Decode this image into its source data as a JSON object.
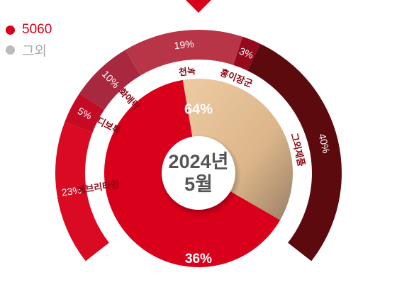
{
  "legend": {
    "items": [
      {
        "label": "5060",
        "color": "#d9001b"
      },
      {
        "label": "그외",
        "color": "#bbbbbb"
      }
    ]
  },
  "chart_data": [
    {
      "type": "pie",
      "title": "",
      "center_label": [
        "2024년",
        "5월"
      ],
      "slices": [
        {
          "label": "5060",
          "value": 64,
          "display": "64%",
          "color": "#d9001b"
        },
        {
          "label": "그외",
          "value": 36,
          "display": "36%",
          "color": "#e9c49a"
        }
      ]
    },
    {
      "type": "bar",
      "layout": "semicircular stacked ring",
      "categories": [
        "에브리타임",
        "디보톡",
        "화애락",
        "천녹",
        "홍이장군",
        "그외제품"
      ],
      "values": [
        23,
        5,
        10,
        19,
        3,
        40
      ],
      "value_labels": [
        "23%",
        "5%",
        "10%",
        "19%",
        "3%",
        "40%"
      ],
      "colors": [
        "#d90a22",
        "#c40b23",
        "#a8283f",
        "#b83547",
        "#96081c",
        "#5c0a0e"
      ]
    }
  ]
}
